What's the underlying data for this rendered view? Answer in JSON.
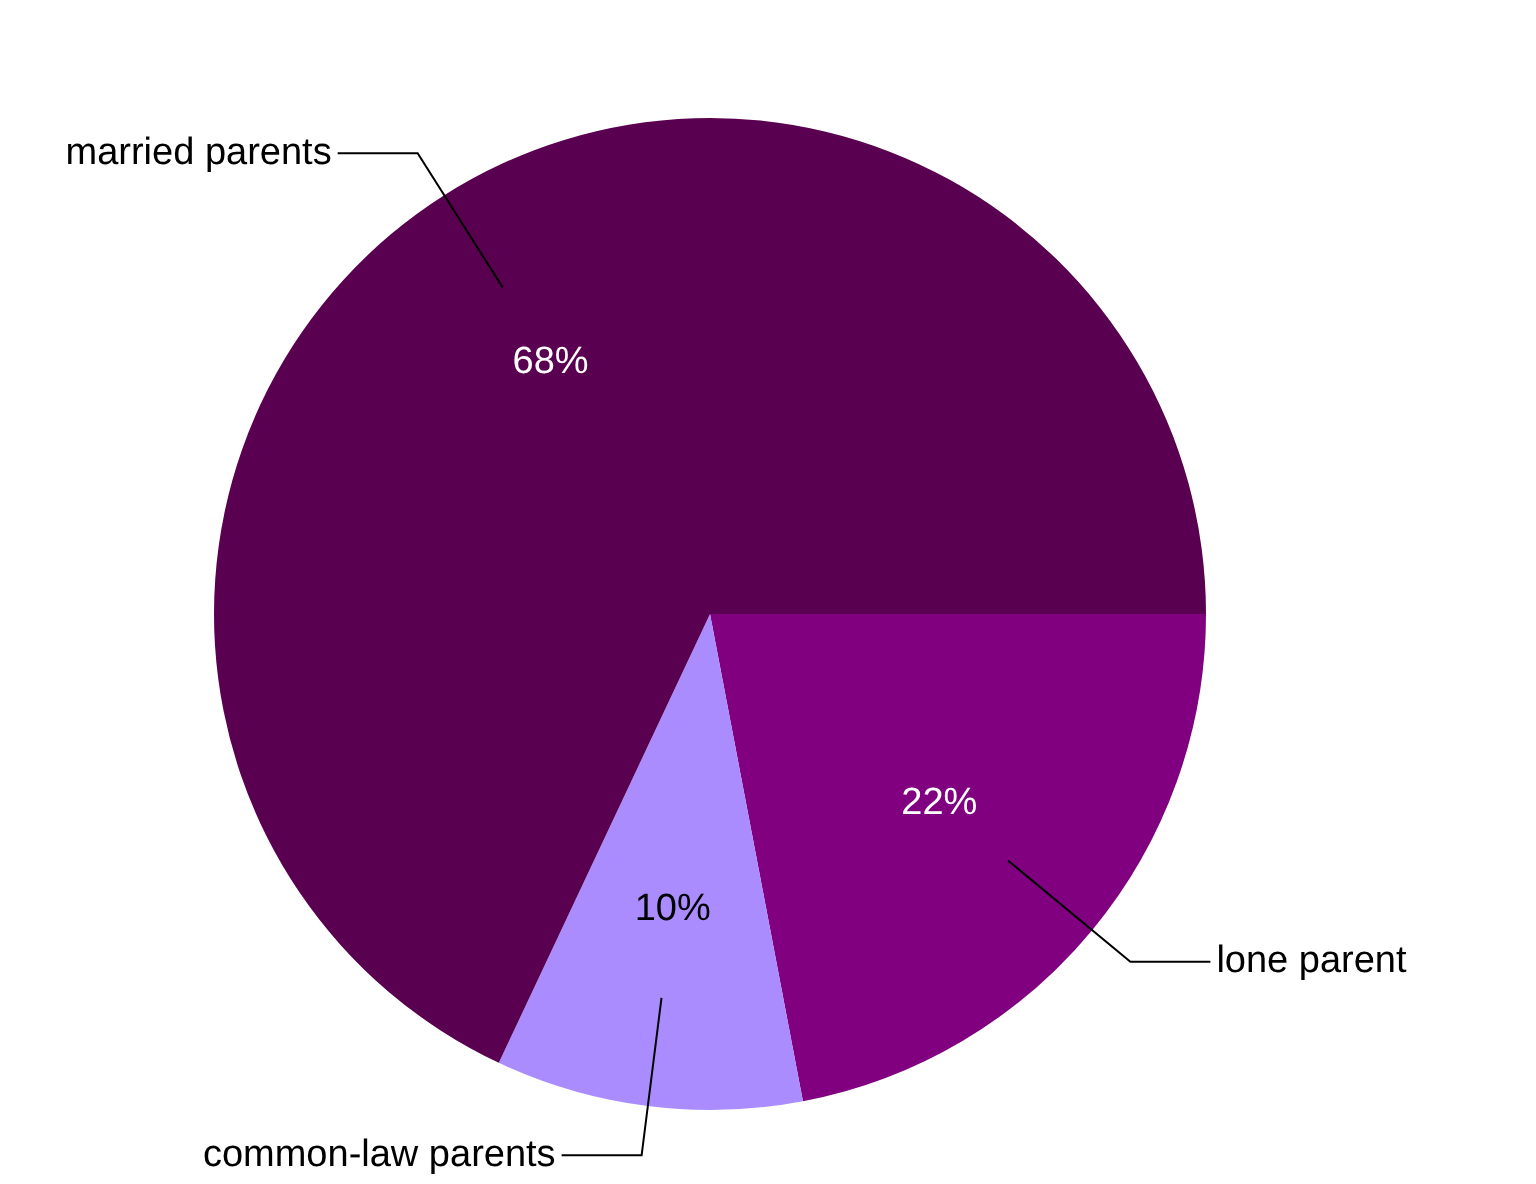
{
  "chart_data": {
    "type": "pie",
    "categories": [
      "lone parent",
      "common-law parents",
      "married parents"
    ],
    "values": [
      22,
      10,
      68
    ],
    "colors": [
      "#800080",
      "#aa8cff",
      "#5a0050"
    ],
    "value_labels": [
      "22%",
      "10%",
      "68%"
    ],
    "legend": false
  }
}
